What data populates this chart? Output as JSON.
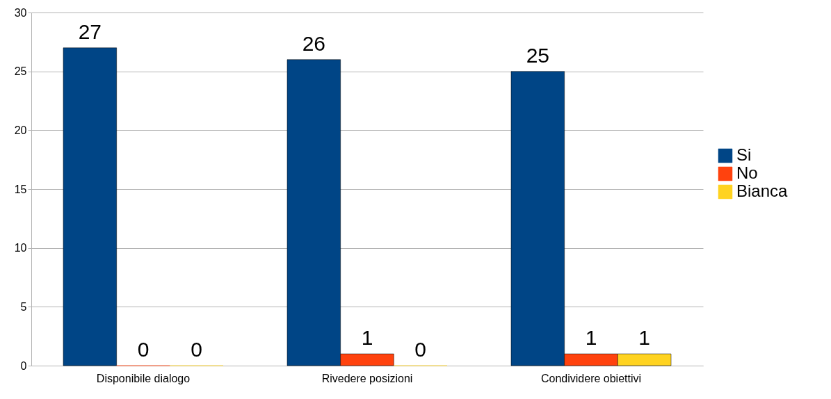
{
  "chart_data": {
    "type": "bar",
    "categories": [
      "Disponibile dialogo",
      "Rivedere posizioni",
      "Condividere obiettivi"
    ],
    "series": [
      {
        "name": "Si",
        "color": "#004586",
        "values": [
          27,
          26,
          25
        ]
      },
      {
        "name": "No",
        "color": "#ff420e",
        "values": [
          0,
          1,
          1
        ]
      },
      {
        "name": "Bianca",
        "color": "#ffd320",
        "values": [
          0,
          0,
          1
        ]
      }
    ],
    "ylim": [
      0,
      30
    ],
    "yticks": [
      0,
      5,
      10,
      15,
      20,
      25,
      30
    ],
    "grid": "y",
    "legend": "right",
    "data_labels": true
  }
}
